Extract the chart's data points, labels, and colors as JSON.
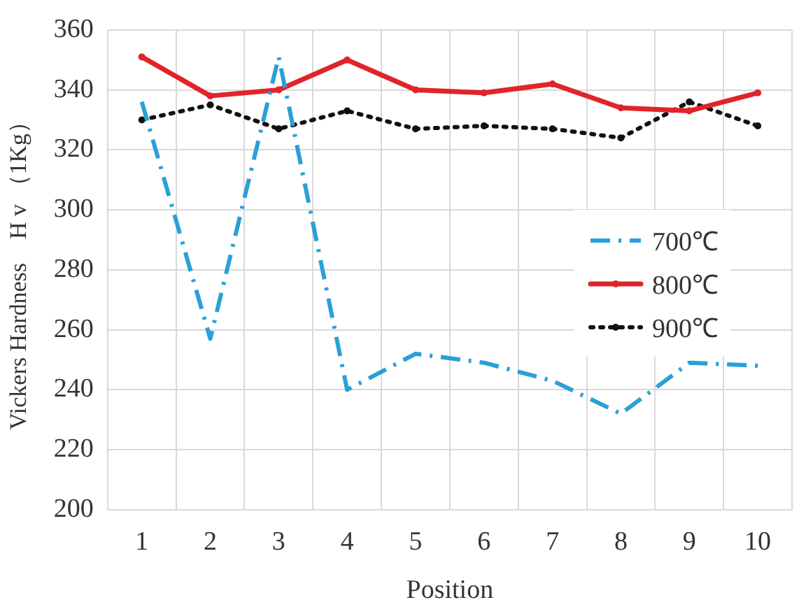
{
  "chart_data": {
    "type": "line",
    "xlabel": "Position",
    "ylabel": "Vickers Hardness　H v （1Kg）",
    "categories": [
      "1",
      "2",
      "3",
      "4",
      "5",
      "6",
      "7",
      "8",
      "9",
      "10"
    ],
    "ylim": [
      200,
      360
    ],
    "yticks": [
      200,
      220,
      240,
      260,
      280,
      300,
      320,
      340,
      360
    ],
    "grid": true,
    "legend": "right",
    "series": [
      {
        "name": "700℃",
        "color": "#2aa0d8",
        "line_style": "dashdot",
        "marker": "none",
        "values": [
          336,
          257,
          351,
          240,
          252,
          249,
          243,
          232,
          249,
          248
        ]
      },
      {
        "name": "800℃",
        "color": "#e0242a",
        "line_style": "solid",
        "marker": "circle",
        "values": [
          351,
          338,
          340,
          350,
          340,
          339,
          342,
          334,
          333,
          339
        ]
      },
      {
        "name": "900℃",
        "color": "#111111",
        "line_style": "dotted",
        "marker": "circle",
        "values": [
          330,
          335,
          327,
          333,
          327,
          328,
          327,
          324,
          336,
          328
        ]
      }
    ]
  }
}
